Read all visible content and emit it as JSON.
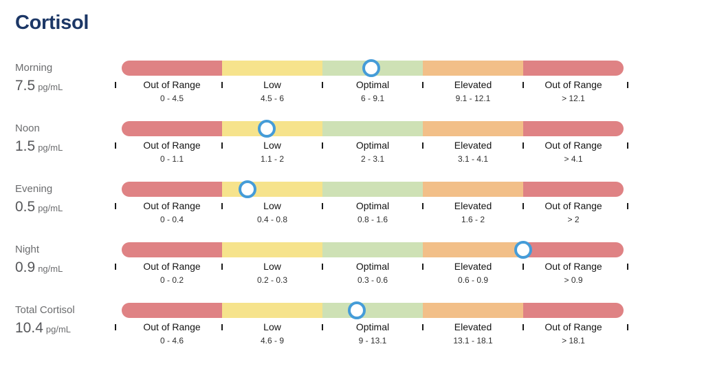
{
  "title": "Cortisol",
  "colors": {
    "red": "#DF8284",
    "yellow": "#F6E38C",
    "green": "#CEE1B5",
    "orange": "#F2BF88",
    "marker_ring": "#459CD8",
    "title_navy": "#1C3766",
    "label_gray": "#6B6C6E",
    "value_gray": "#56575A"
  },
  "chart_data": {
    "type": "bar",
    "subtype": "range-indicator-rows",
    "segment_order": [
      "Out of Range",
      "Low",
      "Optimal",
      "Elevated",
      "Out of Range"
    ],
    "rows": [
      {
        "name": "Morning",
        "value": 7.5,
        "value_display": "7.5",
        "unit": "pg/mL",
        "segments": [
          {
            "label": "Out of Range",
            "range_text": "0 - 4.5",
            "min": 0,
            "max": 4.5,
            "color": "red"
          },
          {
            "label": "Low",
            "range_text": "4.5 - 6",
            "min": 4.5,
            "max": 6,
            "color": "yellow"
          },
          {
            "label": "Optimal",
            "range_text": "6 - 9.1",
            "min": 6,
            "max": 9.1,
            "color": "green"
          },
          {
            "label": "Elevated",
            "range_text": "9.1 - 12.1",
            "min": 9.1,
            "max": 12.1,
            "color": "orange"
          },
          {
            "label": "Out of Range",
            "range_text": "> 12.1",
            "min": 12.1,
            "max": null,
            "color": "red"
          }
        ]
      },
      {
        "name": "Noon",
        "value": 1.5,
        "value_display": "1.5",
        "unit": "pg/mL",
        "segments": [
          {
            "label": "Out of Range",
            "range_text": "0 - 1.1",
            "min": 0,
            "max": 1.1,
            "color": "red"
          },
          {
            "label": "Low",
            "range_text": "1.1 - 2",
            "min": 1.1,
            "max": 2,
            "color": "yellow"
          },
          {
            "label": "Optimal",
            "range_text": "2 - 3.1",
            "min": 2,
            "max": 3.1,
            "color": "green"
          },
          {
            "label": "Elevated",
            "range_text": "3.1 - 4.1",
            "min": 3.1,
            "max": 4.1,
            "color": "orange"
          },
          {
            "label": "Out of Range",
            "range_text": "> 4.1",
            "min": 4.1,
            "max": null,
            "color": "red"
          }
        ]
      },
      {
        "name": "Evening",
        "value": 0.5,
        "value_display": "0.5",
        "unit": "pg/mL",
        "segments": [
          {
            "label": "Out of Range",
            "range_text": "0 - 0.4",
            "min": 0,
            "max": 0.4,
            "color": "red"
          },
          {
            "label": "Low",
            "range_text": "0.4 - 0.8",
            "min": 0.4,
            "max": 0.8,
            "color": "yellow"
          },
          {
            "label": "Optimal",
            "range_text": "0.8 - 1.6",
            "min": 0.8,
            "max": 1.6,
            "color": "green"
          },
          {
            "label": "Elevated",
            "range_text": "1.6 - 2",
            "min": 1.6,
            "max": 2,
            "color": "orange"
          },
          {
            "label": "Out of Range",
            "range_text": "> 2",
            "min": 2,
            "max": null,
            "color": "red"
          }
        ]
      },
      {
        "name": "Night",
        "value": 0.9,
        "value_display": "0.9",
        "unit": "ng/mL",
        "segments": [
          {
            "label": "Out of Range",
            "range_text": "0 - 0.2",
            "min": 0,
            "max": 0.2,
            "color": "red"
          },
          {
            "label": "Low",
            "range_text": "0.2 - 0.3",
            "min": 0.2,
            "max": 0.3,
            "color": "yellow"
          },
          {
            "label": "Optimal",
            "range_text": "0.3 - 0.6",
            "min": 0.3,
            "max": 0.6,
            "color": "green"
          },
          {
            "label": "Elevated",
            "range_text": "0.6 - 0.9",
            "min": 0.6,
            "max": 0.9,
            "color": "orange"
          },
          {
            "label": "Out of Range",
            "range_text": "> 0.9",
            "min": 0.9,
            "max": null,
            "color": "red"
          }
        ]
      },
      {
        "name": "Total Cortisol",
        "value": 10.4,
        "value_display": "10.4",
        "unit": "pg/mL",
        "segments": [
          {
            "label": "Out of Range",
            "range_text": "0 - 4.6",
            "min": 0,
            "max": 4.6,
            "color": "red"
          },
          {
            "label": "Low",
            "range_text": "4.6 - 9",
            "min": 4.6,
            "max": 9,
            "color": "yellow"
          },
          {
            "label": "Optimal",
            "range_text": "9 - 13.1",
            "min": 9,
            "max": 13.1,
            "color": "green"
          },
          {
            "label": "Elevated",
            "range_text": "13.1 - 18.1",
            "min": 13.1,
            "max": 18.1,
            "color": "orange"
          },
          {
            "label": "Out of Range",
            "range_text": "> 18.1",
            "min": 18.1,
            "max": null,
            "color": "red"
          }
        ]
      }
    ]
  }
}
